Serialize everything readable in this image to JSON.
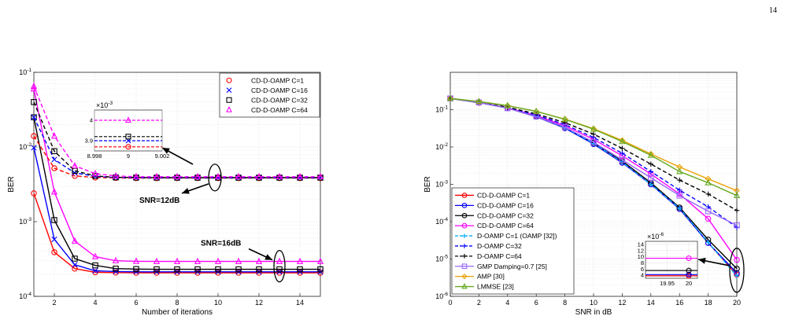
{
  "page_number": "14",
  "chart_data": [
    {
      "type": "line",
      "xlabel": "Number of iterations",
      "ylabel": "BER",
      "xlim": [
        1,
        15
      ],
      "ylim": [
        0.0001,
        0.1
      ],
      "yscale": "log",
      "xticks": [
        "2",
        "4",
        "6",
        "8",
        "10",
        "12",
        "14"
      ],
      "yticks": [
        {
          "v": 0.1,
          "b": "10",
          "e": "-1"
        },
        {
          "v": 0.01,
          "b": "10",
          "e": "-2"
        },
        {
          "v": 0.001,
          "b": "10",
          "e": "-3"
        },
        {
          "v": 0.0001,
          "b": "10",
          "e": "-4"
        }
      ],
      "grid": true,
      "legend_position": "top-right",
      "x": [
        1,
        2,
        3,
        4,
        5,
        6,
        7,
        8,
        9,
        10,
        11,
        12,
        13,
        14,
        15
      ],
      "series": [
        {
          "name": "CD-D-OAMP C=1",
          "color": "#ff0000",
          "marker": "circle",
          "dash": false,
          "values": [
            0.0024,
            0.00039,
            0.000235,
            0.00021,
            0.000208,
            0.000207,
            0.000207,
            0.000207,
            0.000207,
            0.000207,
            0.000207,
            0.000207,
            0.000207,
            0.000207,
            0.000207
          ]
        },
        {
          "name": "CD-D-OAMP C=16",
          "color": "#0000ff",
          "marker": "x",
          "dash": false,
          "values": [
            0.0098,
            0.00058,
            0.000265,
            0.00022,
            0.000215,
            0.000213,
            0.000213,
            0.000213,
            0.000213,
            0.000213,
            0.000213,
            0.000213,
            0.000213,
            0.000213,
            0.000213
          ]
        },
        {
          "name": "CD-D-OAMP C=32",
          "color": "#000000",
          "marker": "square",
          "dash": false,
          "values": [
            0.025,
            0.00105,
            0.00032,
            0.00026,
            0.000235,
            0.000232,
            0.00023,
            0.00023,
            0.00023,
            0.00023,
            0.00023,
            0.00023,
            0.00023,
            0.00023,
            0.00023
          ]
        },
        {
          "name": "CD-D-OAMP C=64",
          "color": "#ff00ff",
          "marker": "triangle",
          "dash": false,
          "values": [
            0.06,
            0.0025,
            0.00055,
            0.00034,
            0.0003,
            0.000295,
            0.000293,
            0.000293,
            0.000293,
            0.000293,
            0.000293,
            0.000293,
            0.000293,
            0.000293,
            0.000293
          ]
        },
        {
          "name": "",
          "color": "#ff0000",
          "marker": "circle",
          "dash": true,
          "values": [
            0.014,
            0.0052,
            0.0041,
            0.0039,
            0.00385,
            0.00383,
            0.00383,
            0.00383,
            0.00383,
            0.00383,
            0.00383,
            0.00383,
            0.00383,
            0.00383,
            0.00383
          ]
        },
        {
          "name": "",
          "color": "#0000ff",
          "marker": "x",
          "dash": true,
          "values": [
            0.025,
            0.0068,
            0.0045,
            0.00405,
            0.0039,
            0.00388,
            0.00387,
            0.00387,
            0.00387,
            0.00387,
            0.00387,
            0.00387,
            0.00387,
            0.00387,
            0.00387
          ]
        },
        {
          "name": "",
          "color": "#000000",
          "marker": "square",
          "dash": true,
          "values": [
            0.04,
            0.0088,
            0.0048,
            0.0041,
            0.00392,
            0.0039,
            0.00389,
            0.00389,
            0.00389,
            0.00389,
            0.00389,
            0.00389,
            0.00389,
            0.00389,
            0.00389
          ]
        },
        {
          "name": "",
          "color": "#ff00ff",
          "marker": "triangle",
          "dash": true,
          "values": [
            0.065,
            0.014,
            0.0056,
            0.0044,
            0.0041,
            0.004,
            0.004,
            0.004,
            0.004,
            0.004,
            0.004,
            0.004,
            0.004,
            0.004,
            0.004
          ]
        }
      ],
      "annotations": [
        {
          "text": "SNR=12dB",
          "target_x": 13,
          "target_y": 0.0039
        },
        {
          "text": "SNR=16dB",
          "target_x": 13,
          "target_y": 0.00023
        }
      ],
      "inset": {
        "xlim": [
          8.998,
          9.002
        ],
        "xticks": [
          "8.998",
          "9",
          "9.002"
        ],
        "ylim": [
          3.85,
          4.05
        ],
        "yticks": [
          "3.9",
          "4"
        ],
        "yexponent": "-3",
        "levels": [
          3.87,
          3.9,
          3.92,
          4.0
        ]
      }
    },
    {
      "type": "line",
      "xlabel": "SNR in dB",
      "ylabel": "BER",
      "xlim": [
        0,
        20
      ],
      "ylim": [
        1e-06,
        1
      ],
      "yscale": "log",
      "xticks": [
        "0",
        "2",
        "4",
        "6",
        "8",
        "10",
        "12",
        "14",
        "16",
        "18",
        "20"
      ],
      "yticks": [
        {
          "v": 0.1,
          "b": "10",
          "e": "-1"
        },
        {
          "v": 0.01,
          "b": "10",
          "e": "-2"
        },
        {
          "v": 0.001,
          "b": "10",
          "e": "-3"
        },
        {
          "v": 0.0001,
          "b": "10",
          "e": "-4"
        },
        {
          "v": 1e-05,
          "b": "10",
          "e": "-5"
        },
        {
          "v": 1e-06,
          "b": "10",
          "e": "-6"
        }
      ],
      "grid": true,
      "legend_position": "bottom-left",
      "x": [
        0,
        2,
        4,
        6,
        8,
        10,
        12,
        14,
        16,
        18,
        20
      ],
      "series": [
        {
          "name": "CD-D-OAMP C=1",
          "color": "#ff0000",
          "marker": "circle",
          "dash": false,
          "values": [
            0.2,
            0.155,
            0.11,
            0.065,
            0.032,
            0.012,
            0.0038,
            0.001,
            0.00022,
            2.7e-05,
            3.8e-06
          ]
        },
        {
          "name": "CD-D-OAMP C=16",
          "color": "#0000ff",
          "marker": "circle",
          "dash": false,
          "values": [
            0.2,
            0.155,
            0.11,
            0.065,
            0.032,
            0.012,
            0.0038,
            0.001,
            0.00022,
            2.7e-05,
            4.2e-06
          ]
        },
        {
          "name": "CD-D-OAMP C=32",
          "color": "#000000",
          "marker": "circle",
          "dash": false,
          "values": [
            0.2,
            0.155,
            0.11,
            0.067,
            0.034,
            0.013,
            0.0042,
            0.0011,
            0.00024,
            3.3e-05,
            5.5e-06
          ]
        },
        {
          "name": "CD-D-OAMP C=64",
          "color": "#ff00ff",
          "marker": "circle",
          "dash": false,
          "values": [
            0.2,
            0.157,
            0.112,
            0.07,
            0.037,
            0.016,
            0.0058,
            0.0019,
            0.00055,
            0.00012,
            9.5e-06
          ]
        },
        {
          "name": "D-OAMP C=1 (OAMP [32])",
          "color": "#00aaff",
          "marker": "plus",
          "dash": true,
          "values": [
            0.2,
            0.155,
            0.11,
            0.066,
            0.033,
            0.0125,
            0.0039,
            0.001,
            0.00023,
            2.8e-05,
            3.5e-06
          ]
        },
        {
          "name": "D-OAMP C=32",
          "color": "#0000ff",
          "marker": "plus",
          "dash": true,
          "values": [
            0.2,
            0.157,
            0.113,
            0.072,
            0.04,
            0.018,
            0.0068,
            0.0022,
            0.0007,
            0.00025,
            7e-05
          ]
        },
        {
          "name": "D-OAMP C=64",
          "color": "#000000",
          "marker": "plus",
          "dash": true,
          "values": [
            0.2,
            0.158,
            0.116,
            0.077,
            0.045,
            0.022,
            0.0092,
            0.0035,
            0.0013,
            0.00055,
            0.0002
          ]
        },
        {
          "name": "GMP Damping=0.7 [25]",
          "color": "#9966ff",
          "marker": "square",
          "dash": false,
          "values": [
            0.2,
            0.156,
            0.11,
            0.066,
            0.034,
            0.0135,
            0.0045,
            0.0015,
            0.0005,
            0.00019,
            8e-05
          ]
        },
        {
          "name": "AMP [30]",
          "color": "#e8a000",
          "marker": "diamond",
          "dash": false,
          "values": [
            0.2,
            0.165,
            0.128,
            0.09,
            0.056,
            0.031,
            0.015,
            0.0065,
            0.0029,
            0.0014,
            0.00068
          ]
        },
        {
          "name": "LMMSE [23]",
          "color": "#66aa22",
          "marker": "triangle",
          "dash": false,
          "values": [
            0.2,
            0.165,
            0.128,
            0.09,
            0.055,
            0.03,
            0.014,
            0.006,
            0.0022,
            0.0011,
            0.0005
          ]
        }
      ],
      "inset": {
        "xlim": [
          19.9,
          20.02
        ],
        "xticks": [
          "19.95",
          "20"
        ],
        "ylim": [
          3,
          15
        ],
        "yticks": [
          "4",
          "6",
          "8",
          "10",
          "12",
          "14"
        ],
        "yexponent": "-6",
        "levels": [
          3.8,
          4.2,
          5.5,
          9.5
        ]
      }
    }
  ]
}
